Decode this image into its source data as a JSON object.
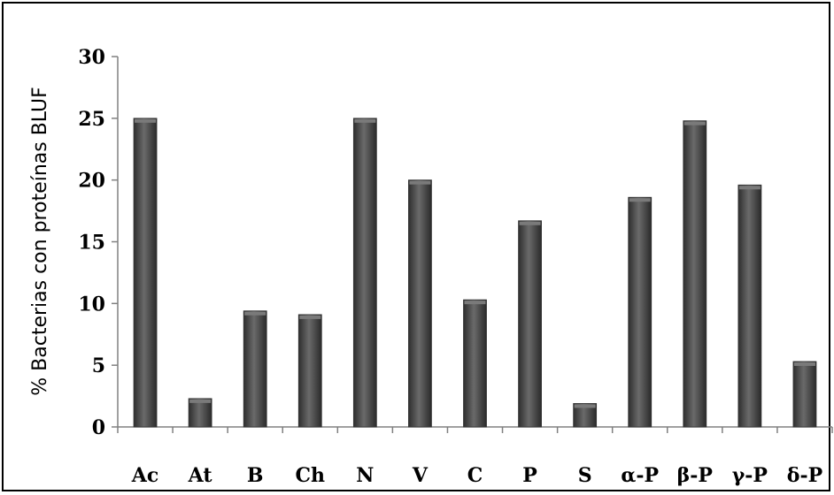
{
  "chart_data": {
    "type": "bar",
    "categories": [
      "Ac",
      "At",
      "B",
      "Ch",
      "N",
      "V",
      "C",
      "P",
      "S",
      "α-P",
      "β-P",
      "γ-P",
      "δ-P"
    ],
    "values": [
      25.0,
      2.3,
      9.4,
      9.1,
      25.0,
      20.0,
      10.3,
      16.7,
      1.9,
      18.6,
      24.8,
      19.6,
      5.3
    ],
    "ylabel": "% Bacterias con proteínas BLUF",
    "xlabel": "",
    "ylim": [
      0,
      30
    ],
    "yticks": [
      0,
      5,
      10,
      15,
      20,
      25,
      30
    ],
    "bar_color": "#4a4a4a",
    "grid": false,
    "legend": "none"
  }
}
